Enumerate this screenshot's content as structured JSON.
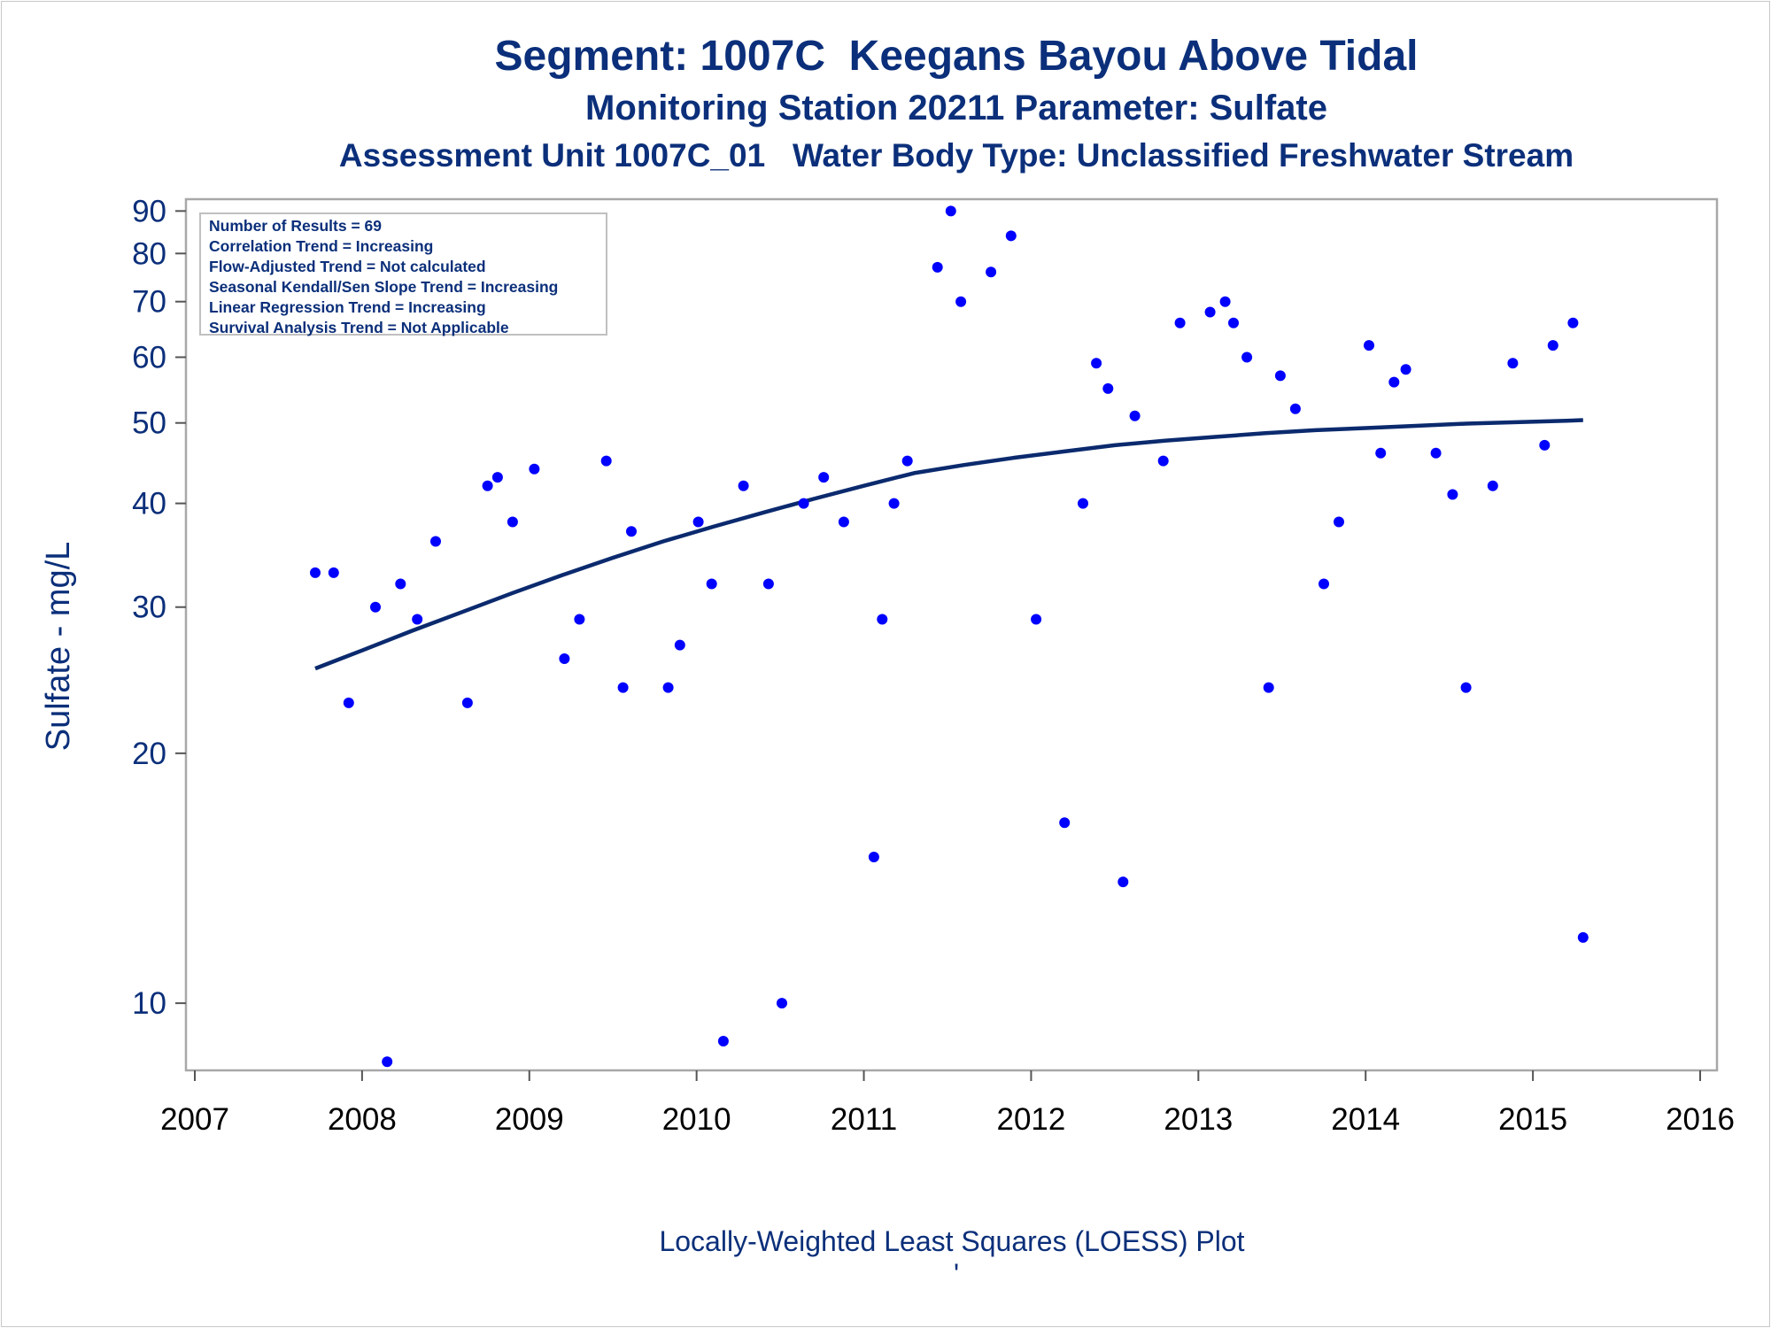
{
  "chart_data": {
    "type": "scatter",
    "title": "Segment: 1007C  Keegans Bayou Above Tidal",
    "subtitle": "Monitoring Station 20211 Parameter: Sulfate",
    "subtitle2": "Assessment Unit 1007C_01   Water Body Type: Unclassified Freshwater Stream",
    "xlabel": "",
    "ylabel": "Sulfate - mg/L",
    "footnote": "Locally-Weighted Least Squares (LOESS) Plot",
    "footnote_mark": "'",
    "y_scale": "log",
    "xlim": [
      2007,
      2016
    ],
    "ylim": [
      8.3,
      93
    ],
    "x_ticks": [
      "2007",
      "2008",
      "2009",
      "2010",
      "2011",
      "2012",
      "2013",
      "2014",
      "2015",
      "2016"
    ],
    "y_ticks": [
      "10",
      "20",
      "30",
      "40",
      "50",
      "60",
      "70",
      "80",
      "90"
    ],
    "y_tick_values": [
      10,
      20,
      30,
      40,
      50,
      60,
      70,
      80,
      90
    ],
    "grid": false,
    "stats": [
      "Number of Results = 69",
      "Correlation Trend = Increasing",
      "Flow-Adjusted Trend = Not calculated",
      "Seasonal Kendall/Sen Slope Trend = Increasing",
      "Linear Regression Trend = Increasing",
      "Survival Analysis Trend = Not Applicable"
    ],
    "series": [
      {
        "type": "scatter",
        "color": "#0000ff",
        "points": [
          [
            2007.72,
            33
          ],
          [
            2007.83,
            33
          ],
          [
            2007.92,
            23
          ],
          [
            2008.08,
            30
          ],
          [
            2008.15,
            8.5
          ],
          [
            2008.23,
            32
          ],
          [
            2008.33,
            29
          ],
          [
            2008.44,
            36
          ],
          [
            2008.63,
            23
          ],
          [
            2008.75,
            42
          ],
          [
            2008.81,
            43
          ],
          [
            2008.9,
            38
          ],
          [
            2009.03,
            44
          ],
          [
            2009.21,
            26
          ],
          [
            2009.3,
            29
          ],
          [
            2009.46,
            45
          ],
          [
            2009.56,
            24
          ],
          [
            2009.61,
            37
          ],
          [
            2009.83,
            24
          ],
          [
            2009.9,
            27
          ],
          [
            2010.01,
            38
          ],
          [
            2010.09,
            32
          ],
          [
            2010.16,
            9
          ],
          [
            2010.28,
            42
          ],
          [
            2010.43,
            32
          ],
          [
            2010.51,
            10
          ],
          [
            2010.64,
            40
          ],
          [
            2010.76,
            43
          ],
          [
            2010.88,
            38
          ],
          [
            2011.06,
            15
          ],
          [
            2011.11,
            29
          ],
          [
            2011.18,
            40
          ],
          [
            2011.26,
            45
          ],
          [
            2011.44,
            77
          ],
          [
            2011.52,
            90
          ],
          [
            2011.58,
            70
          ],
          [
            2011.76,
            76
          ],
          [
            2011.88,
            84
          ],
          [
            2012.03,
            29
          ],
          [
            2012.2,
            16.5
          ],
          [
            2012.31,
            40
          ],
          [
            2012.39,
            59
          ],
          [
            2012.46,
            55
          ],
          [
            2012.55,
            14
          ],
          [
            2012.62,
            51
          ],
          [
            2012.79,
            45
          ],
          [
            2012.89,
            66
          ],
          [
            2013.07,
            68
          ],
          [
            2013.16,
            70
          ],
          [
            2013.21,
            66
          ],
          [
            2013.29,
            60
          ],
          [
            2013.42,
            24
          ],
          [
            2013.49,
            57
          ],
          [
            2013.58,
            52
          ],
          [
            2013.75,
            32
          ],
          [
            2013.84,
            38
          ],
          [
            2014.02,
            62
          ],
          [
            2014.09,
            46
          ],
          [
            2014.17,
            56
          ],
          [
            2014.24,
            58
          ],
          [
            2014.42,
            46
          ],
          [
            2014.52,
            41
          ],
          [
            2014.6,
            24
          ],
          [
            2014.76,
            42
          ],
          [
            2014.88,
            59
          ],
          [
            2015.07,
            47
          ],
          [
            2015.12,
            62
          ],
          [
            2015.24,
            66
          ],
          [
            2015.3,
            12
          ]
        ]
      },
      {
        "type": "line",
        "color": "#0b2a6e",
        "points": [
          [
            2007.72,
            25.3
          ],
          [
            2008.0,
            26.6
          ],
          [
            2008.3,
            28.1
          ],
          [
            2008.6,
            29.6
          ],
          [
            2008.9,
            31.2
          ],
          [
            2009.2,
            32.8
          ],
          [
            2009.5,
            34.4
          ],
          [
            2009.8,
            36.0
          ],
          [
            2010.1,
            37.5
          ],
          [
            2010.4,
            39.0
          ],
          [
            2010.7,
            40.5
          ],
          [
            2011.0,
            42.0
          ],
          [
            2011.3,
            43.5
          ],
          [
            2011.6,
            44.5
          ],
          [
            2011.9,
            45.4
          ],
          [
            2012.2,
            46.2
          ],
          [
            2012.5,
            47.0
          ],
          [
            2012.8,
            47.6
          ],
          [
            2013.1,
            48.1
          ],
          [
            2013.4,
            48.6
          ],
          [
            2013.7,
            49.0
          ],
          [
            2014.0,
            49.3
          ],
          [
            2014.3,
            49.6
          ],
          [
            2014.6,
            49.9
          ],
          [
            2014.9,
            50.1
          ],
          [
            2015.2,
            50.3
          ],
          [
            2015.3,
            50.4
          ]
        ]
      }
    ]
  }
}
